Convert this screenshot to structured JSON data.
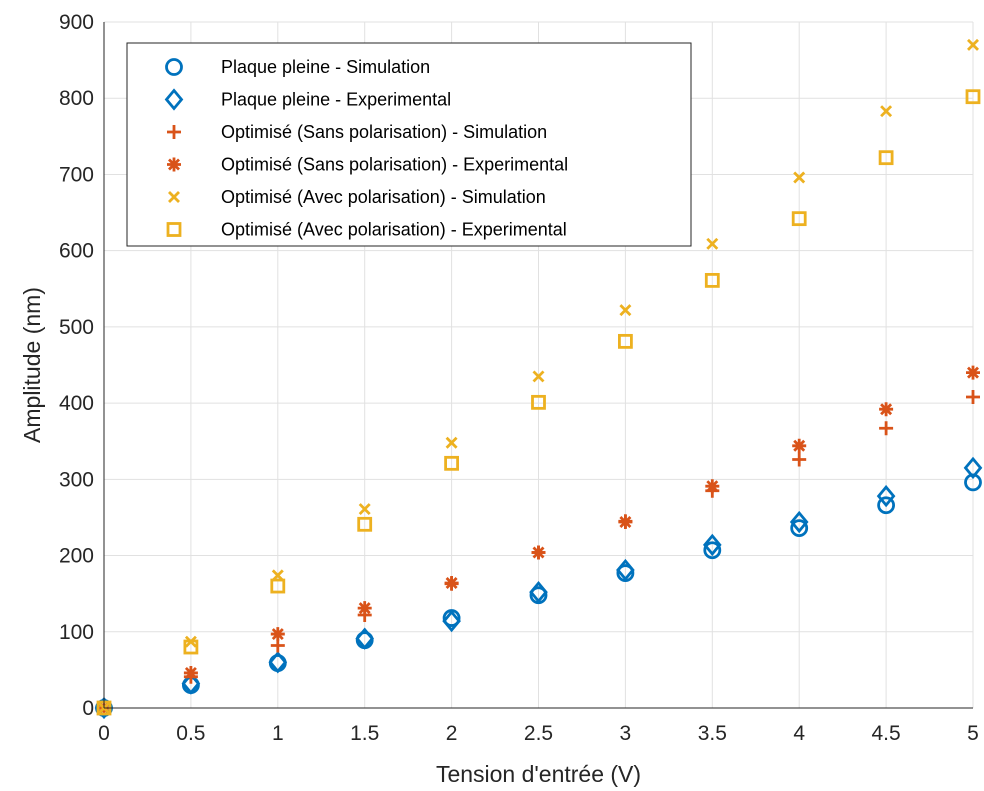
{
  "chart_data": {
    "type": "scatter",
    "xlabel": "Tension d'entrée (V)",
    "ylabel": "Amplitude (nm)",
    "xlim": [
      0,
      5
    ],
    "ylim": [
      0,
      900
    ],
    "xticks": [
      "0",
      "0.5",
      "1",
      "1.5",
      "2",
      "2.5",
      "3",
      "3.5",
      "4",
      "4.5",
      "5"
    ],
    "yticks": [
      "0",
      "100",
      "200",
      "300",
      "400",
      "500",
      "600",
      "700",
      "800",
      "900"
    ],
    "grid": true,
    "legend_position": "top-left",
    "x": [
      0,
      0.5,
      1,
      1.5,
      2,
      2.5,
      3,
      3.5,
      4,
      4.5,
      5
    ],
    "series": [
      {
        "name": "Plaque pleine - Simulation",
        "marker": "circle",
        "color": "#0072BD",
        "values": [
          0,
          30,
          59,
          89,
          118,
          148,
          177,
          207,
          236,
          266,
          296
        ]
      },
      {
        "name": "Plaque pleine - Experimental",
        "marker": "diamond",
        "color": "#0072BD",
        "values": [
          0,
          32,
          60,
          91,
          114,
          152,
          181,
          214,
          244,
          278,
          315
        ]
      },
      {
        "name": "Optimisé (Sans polarisation) - Simulation",
        "marker": "plus",
        "color": "#D95319",
        "values": [
          0,
          41,
          82,
          122,
          163,
          204,
          245,
          285,
          326,
          367,
          408
        ]
      },
      {
        "name": "Optimisé (Sans polarisation) - Experimental",
        "marker": "asterisk",
        "color": "#D95319",
        "values": [
          0,
          46,
          97,
          131,
          164,
          204,
          244,
          291,
          344,
          392,
          440
        ]
      },
      {
        "name": "Optimisé (Avec polarisation) - Simulation",
        "marker": "cross",
        "color": "#EDB120",
        "values": [
          0,
          87,
          174,
          261,
          348,
          435,
          522,
          609,
          696,
          783,
          870
        ]
      },
      {
        "name": "Optimisé (Avec polarisation) - Experimental",
        "marker": "square",
        "color": "#EDB120",
        "values": [
          0,
          80,
          160,
          241,
          321,
          401,
          481,
          561,
          642,
          722,
          802
        ]
      }
    ]
  }
}
